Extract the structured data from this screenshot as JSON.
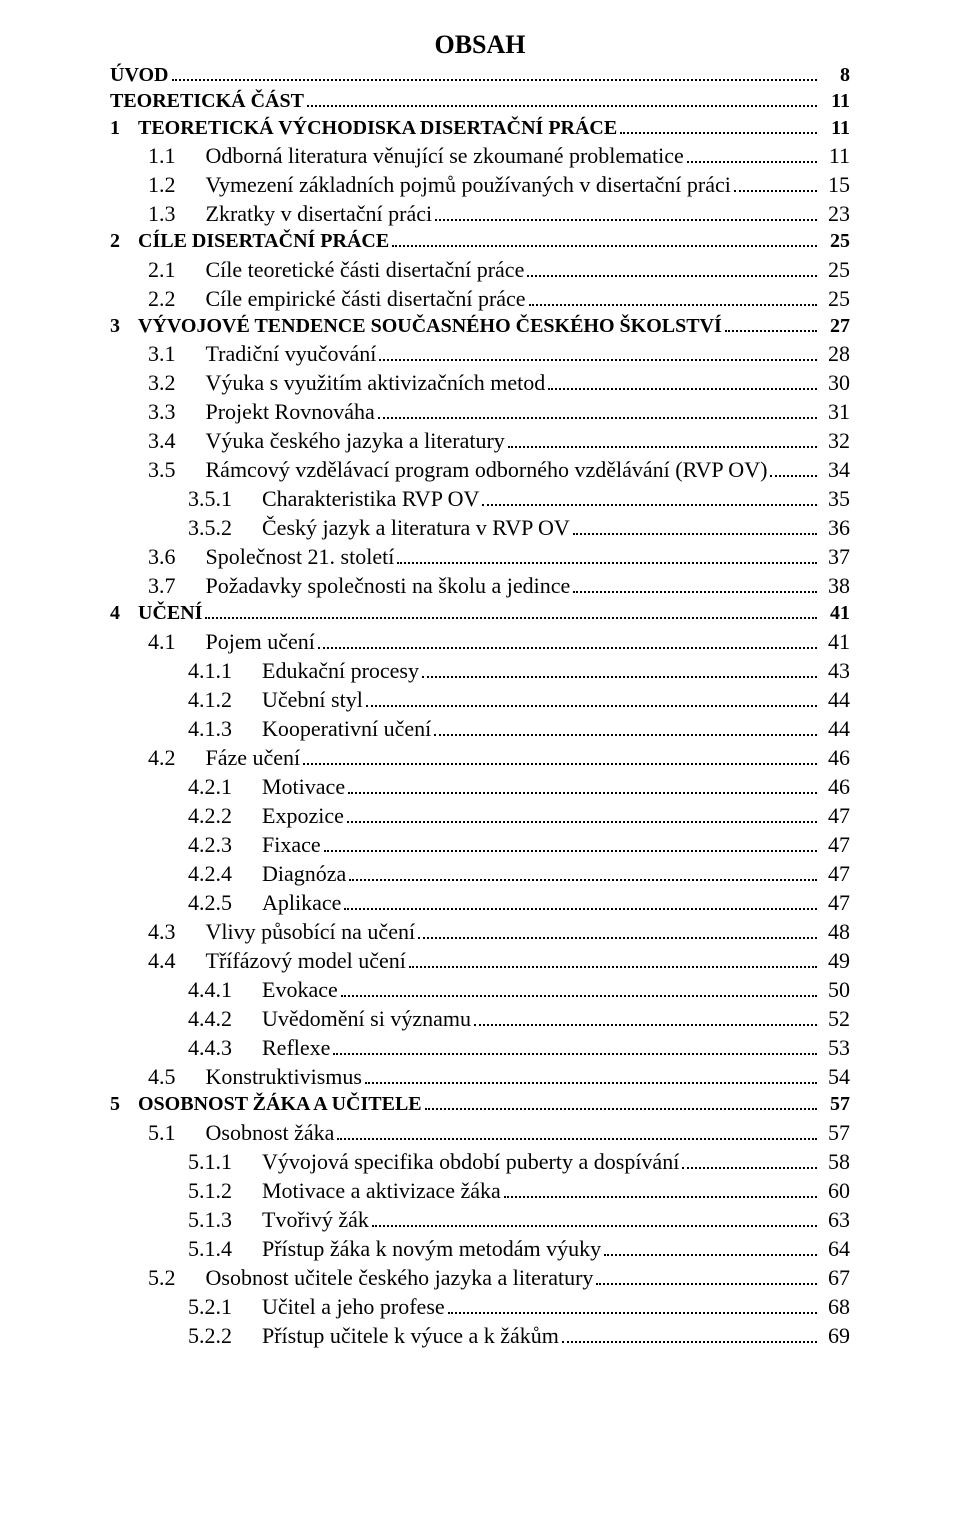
{
  "title": "OBSAH",
  "entries": [
    {
      "indent": 0,
      "style": "chapter",
      "num": "",
      "gap": 0,
      "label": "ÚVOD",
      "page": "8"
    },
    {
      "indent": 0,
      "style": "chapter",
      "num": "",
      "gap": 0,
      "label": "TEORETICKÁ ČÁST",
      "page": "11"
    },
    {
      "indent": 0,
      "style": "section-bold",
      "num": "1",
      "gap": 18,
      "label": "TEORETICKÁ VÝCHODISKA DISERTAČNÍ PRÁCE",
      "page": "11"
    },
    {
      "indent": 1,
      "style": "normal",
      "num": "1.1",
      "gap": 30,
      "label": "Odborná literatura věnující se zkoumané problematice",
      "page": "11"
    },
    {
      "indent": 1,
      "style": "normal",
      "num": "1.2",
      "gap": 30,
      "label": "Vymezení základních pojmů používaných v disertační práci",
      "page": "15"
    },
    {
      "indent": 1,
      "style": "normal",
      "num": "1.3",
      "gap": 30,
      "label": "Zkratky v disertační práci",
      "page": "23"
    },
    {
      "indent": 0,
      "style": "section-bold",
      "num": "2",
      "gap": 18,
      "label": "CÍLE DISERTAČNÍ PRÁCE",
      "page": "25"
    },
    {
      "indent": 1,
      "style": "normal",
      "num": "2.1",
      "gap": 30,
      "label": "Cíle teoretické části disertační práce",
      "page": "25"
    },
    {
      "indent": 1,
      "style": "normal",
      "num": "2.2",
      "gap": 30,
      "label": "Cíle empirické části disertační práce",
      "page": "25"
    },
    {
      "indent": 0,
      "style": "section-bold",
      "num": "3",
      "gap": 18,
      "label": "VÝVOJOVÉ TENDENCE SOUČASNÉHO ČESKÉHO ŠKOLSTVÍ",
      "page": "27"
    },
    {
      "indent": 1,
      "style": "normal",
      "num": "3.1",
      "gap": 30,
      "label": "Tradiční vyučování",
      "page": "28"
    },
    {
      "indent": 1,
      "style": "normal",
      "num": "3.2",
      "gap": 30,
      "label": "Výuka s využitím aktivizačních metod",
      "page": "30"
    },
    {
      "indent": 1,
      "style": "normal",
      "num": "3.3",
      "gap": 30,
      "label": "Projekt Rovnováha",
      "page": "31"
    },
    {
      "indent": 1,
      "style": "normal",
      "num": "3.4",
      "gap": 30,
      "label": "Výuka českého jazyka a literatury",
      "page": "32"
    },
    {
      "indent": 1,
      "style": "normal",
      "num": "3.5",
      "gap": 30,
      "label": "Rámcový vzdělávací program odborného vzdělávání (RVP OV)",
      "page": "34"
    },
    {
      "indent": 2,
      "style": "normal",
      "num": "3.5.1",
      "gap": 30,
      "label": "Charakteristika RVP OV",
      "page": "35"
    },
    {
      "indent": 2,
      "style": "normal",
      "num": "3.5.2",
      "gap": 30,
      "label": "Český jazyk a literatura v RVP OV",
      "page": "36"
    },
    {
      "indent": 1,
      "style": "normal",
      "num": "3.6",
      "gap": 30,
      "label": "Společnost 21. století",
      "page": "37"
    },
    {
      "indent": 1,
      "style": "normal",
      "num": "3.7",
      "gap": 30,
      "label": "Požadavky společnosti na školu a jedince",
      "page": "38"
    },
    {
      "indent": 0,
      "style": "section-bold",
      "num": "4",
      "gap": 18,
      "label": "UČENÍ",
      "page": "41"
    },
    {
      "indent": 1,
      "style": "normal",
      "num": "4.1",
      "gap": 30,
      "label": "Pojem učení",
      "page": "41"
    },
    {
      "indent": 2,
      "style": "normal",
      "num": "4.1.1",
      "gap": 30,
      "label": "Edukační procesy",
      "page": "43"
    },
    {
      "indent": 2,
      "style": "normal",
      "num": "4.1.2",
      "gap": 30,
      "label": "Učební styl",
      "page": "44"
    },
    {
      "indent": 2,
      "style": "normal",
      "num": "4.1.3",
      "gap": 30,
      "label": "Kooperativní učení",
      "page": "44"
    },
    {
      "indent": 1,
      "style": "normal",
      "num": "4.2",
      "gap": 30,
      "label": "Fáze učení",
      "page": "46"
    },
    {
      "indent": 2,
      "style": "normal",
      "num": "4.2.1",
      "gap": 30,
      "label": "Motivace",
      "page": "46"
    },
    {
      "indent": 2,
      "style": "normal",
      "num": "4.2.2",
      "gap": 30,
      "label": "Expozice",
      "page": "47"
    },
    {
      "indent": 2,
      "style": "normal",
      "num": "4.2.3",
      "gap": 30,
      "label": "Fixace",
      "page": "47"
    },
    {
      "indent": 2,
      "style": "normal",
      "num": "4.2.4",
      "gap": 30,
      "label": "Diagnóza",
      "page": "47"
    },
    {
      "indent": 2,
      "style": "normal",
      "num": "4.2.5",
      "gap": 30,
      "label": "Aplikace",
      "page": "47"
    },
    {
      "indent": 1,
      "style": "normal",
      "num": "4.3",
      "gap": 30,
      "label": "Vlivy působící na učení",
      "page": "48"
    },
    {
      "indent": 1,
      "style": "normal",
      "num": "4.4",
      "gap": 30,
      "label": "Třífázový model učení",
      "page": "49"
    },
    {
      "indent": 2,
      "style": "normal",
      "num": "4.4.1",
      "gap": 30,
      "label": "Evokace",
      "page": "50"
    },
    {
      "indent": 2,
      "style": "normal",
      "num": "4.4.2",
      "gap": 30,
      "label": "Uvědomění si významu",
      "page": "52"
    },
    {
      "indent": 2,
      "style": "normal",
      "num": "4.4.3",
      "gap": 30,
      "label": "Reflexe",
      "page": "53"
    },
    {
      "indent": 1,
      "style": "normal",
      "num": "4.5",
      "gap": 30,
      "label": "Konstruktivismus",
      "page": "54"
    },
    {
      "indent": 0,
      "style": "section-bold",
      "num": "5",
      "gap": 18,
      "label": "OSOBNOST ŽÁKA A UČITELE",
      "page": "57"
    },
    {
      "indent": 1,
      "style": "normal",
      "num": "5.1",
      "gap": 30,
      "label": "Osobnost žáka",
      "page": "57"
    },
    {
      "indent": 2,
      "style": "normal",
      "num": "5.1.1",
      "gap": 30,
      "label": "Vývojová specifika období puberty a dospívání",
      "page": "58"
    },
    {
      "indent": 2,
      "style": "normal",
      "num": "5.1.2",
      "gap": 30,
      "label": "Motivace a aktivizace žáka",
      "page": "60"
    },
    {
      "indent": 2,
      "style": "normal",
      "num": "5.1.3",
      "gap": 30,
      "label": "Tvořivý žák",
      "page": "63"
    },
    {
      "indent": 2,
      "style": "normal",
      "num": "5.1.4",
      "gap": 30,
      "label": "Přístup žáka k novým metodám výuky",
      "page": "64"
    },
    {
      "indent": 1,
      "style": "normal",
      "num": "5.2",
      "gap": 30,
      "label": "Osobnost učitele českého jazyka a literatury",
      "page": "67"
    },
    {
      "indent": 2,
      "style": "normal",
      "num": "5.2.1",
      "gap": 30,
      "label": "Učitel a jeho profese",
      "page": "68"
    },
    {
      "indent": 2,
      "style": "normal",
      "num": "5.2.2",
      "gap": 30,
      "label": "Přístup učitele k výuce a k žákům",
      "page": "69"
    }
  ]
}
